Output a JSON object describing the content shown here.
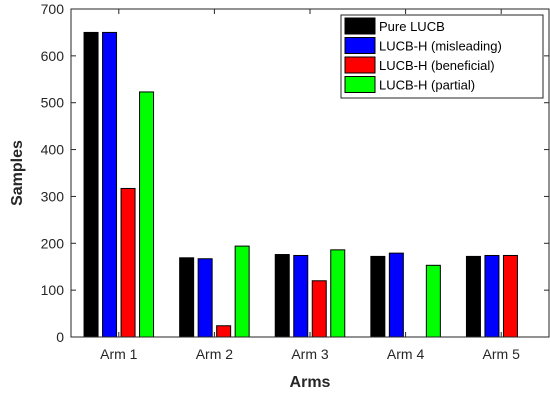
{
  "chart_data": {
    "type": "bar",
    "title": "",
    "xlabel": "Arms",
    "ylabel": "Samples",
    "ylim": [
      0,
      700
    ],
    "yticks": [
      0,
      100,
      200,
      300,
      400,
      500,
      600,
      700
    ],
    "categories": [
      "Arm 1",
      "Arm 2",
      "Arm 3",
      "Arm 4",
      "Arm 5"
    ],
    "grid": false,
    "legend_position": "top-right",
    "series": [
      {
        "name": "Pure LUCB",
        "color": "#000000",
        "values": [
          650,
          169,
          176,
          172,
          172
        ]
      },
      {
        "name": "LUCB-H (misleading)",
        "color": "#0000ff",
        "values": [
          650,
          167,
          174,
          179,
          174
        ]
      },
      {
        "name": "LUCB-H (beneficial)",
        "color": "#ff0000",
        "values": [
          317,
          24,
          120,
          0,
          174
        ]
      },
      {
        "name": "LUCB-H (partial)",
        "color": "#00ff00",
        "values": [
          523,
          194,
          186,
          153,
          0
        ]
      }
    ]
  }
}
